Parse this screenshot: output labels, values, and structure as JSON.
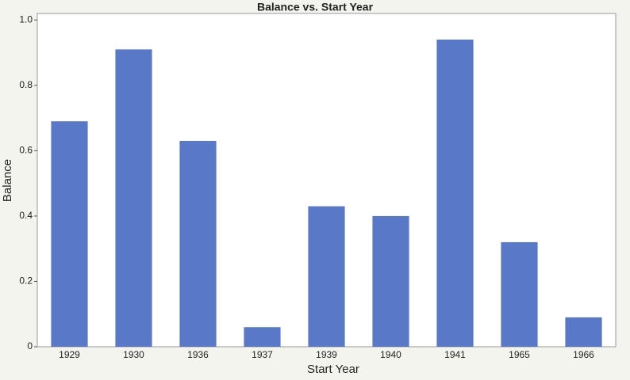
{
  "chart_data": {
    "type": "bar",
    "title": "Balance vs. Start Year",
    "x_label": "Start Year",
    "y_label": "Balance",
    "categories": [
      "1929",
      "1930",
      "1936",
      "1937",
      "1939",
      "1940",
      "1941",
      "1965",
      "1966"
    ],
    "values": [
      0.69,
      0.91,
      0.63,
      0.06,
      0.43,
      0.4,
      0.94,
      0.32,
      0.09
    ],
    "color": "#5a78c8",
    "ylim": [
      0,
      1.02
    ],
    "yticks": [
      0,
      0.2,
      0.4,
      0.6,
      0.8,
      {
        "value": 1,
        "label": "1.0"
      }
    ],
    "grid": false
  }
}
